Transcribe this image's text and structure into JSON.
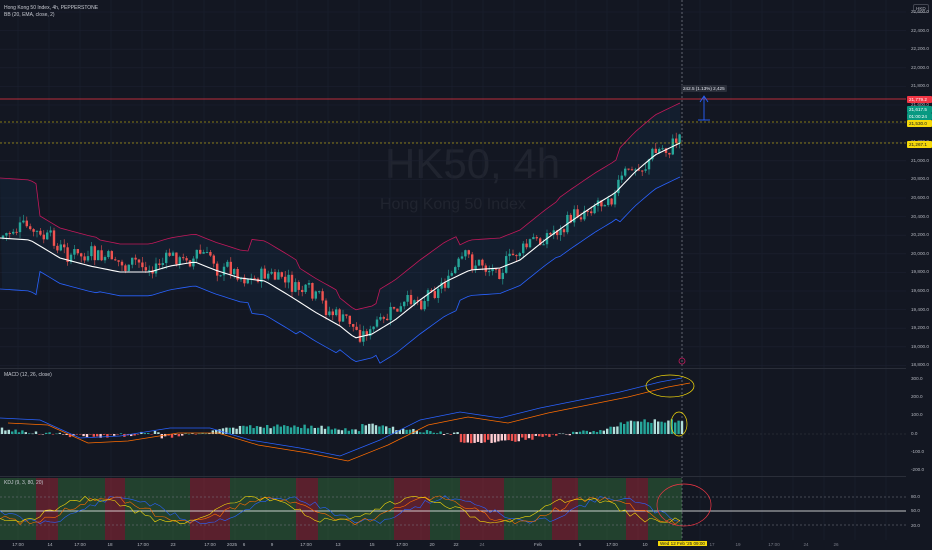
{
  "header": {
    "symbol_line": "Hong Kong 50 Index, 4h, PEPPERSTONE",
    "bb_line": "BB (20, EMA, close, 2)",
    "currency": "HKD"
  },
  "watermark": {
    "ticker": "HK50, 4h",
    "name": "Hong Kong 50 Index"
  },
  "price_axis": [
    "22,600.0",
    "22,400.0",
    "22,200.0",
    "22,000.0",
    "21,800.0",
    "21,600.0",
    "21,400.0",
    "21,200.0",
    "21,000.0",
    "20,800.0",
    "20,600.0",
    "20,400.0",
    "20,200.0",
    "20,000.0",
    "19,800.0",
    "19,600.0",
    "19,400.0",
    "19,200.0",
    "19,000.0",
    "18,800.0"
  ],
  "price_tags": [
    {
      "label": "21,779.2",
      "color": "#f23645"
    },
    {
      "label": "21,617.5",
      "color": "#089981"
    },
    {
      "label": "01:00:24",
      "color": "#089981"
    },
    {
      "label": "21,530.0",
      "color": "#f5d90a"
    },
    {
      "label": "21,267.1",
      "color": "#f5d90a"
    }
  ],
  "measure_label": "242.5 (1.13%) 2,425",
  "macd": {
    "label": "MACD (12, 26, close)",
    "axis": [
      "300.0",
      "200.0",
      "100.0",
      "0.0",
      "-100.0",
      "-200.0"
    ]
  },
  "kdj": {
    "label": "KDJ (9, 3, 80, 20)",
    "axis": [
      "80.0",
      "50.0",
      "20.0"
    ]
  },
  "time_axis": [
    "17:00",
    "14",
    "17:00",
    "18",
    "17:00",
    "23",
    "17:00",
    "2025",
    "6",
    "9",
    "17:00",
    "13",
    "15",
    "17:00",
    "20",
    "22",
    "24",
    "Feb",
    "5",
    "17:00",
    "10",
    "17",
    "19",
    "17:00",
    "24",
    "26"
  ],
  "crosshair_time": "Wed 12 Feb '25  09:00",
  "colors": {
    "up": "#26a69a",
    "down": "#ef5350",
    "bb_upper": "#c2185b",
    "bb_lower": "#2962ff",
    "basis": "#ffffff",
    "macd_line": "#2962ff",
    "signal_line": "#ff6d00"
  }
}
